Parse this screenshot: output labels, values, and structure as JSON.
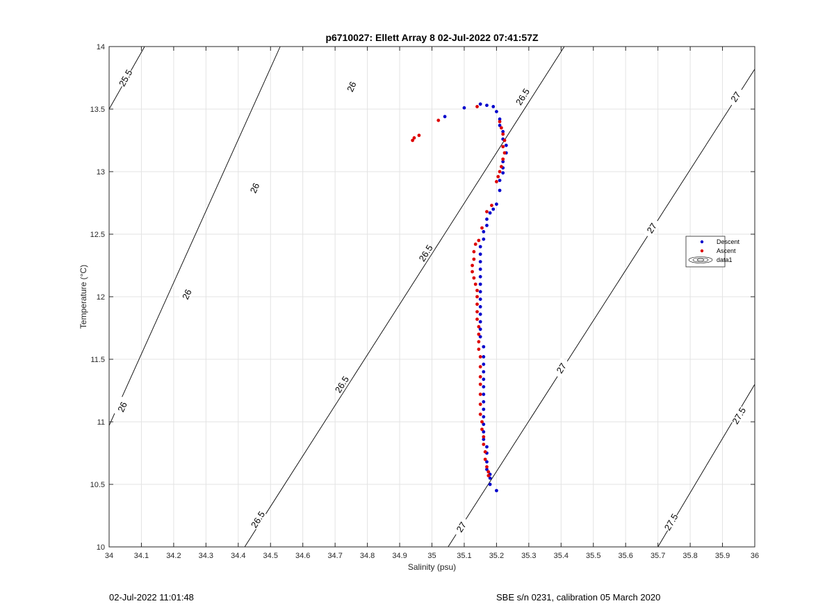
{
  "chart_data": {
    "type": "scatter",
    "title": "p6710027: Ellett Array 8 02-Jul-2022 07:41:57Z",
    "xlabel": "Salinity (psu)",
    "ylabel": "Temperature (°C)",
    "xlim": [
      34,
      36
    ],
    "ylim": [
      10,
      14
    ],
    "xticks": [
      "34",
      "34.1",
      "34.2",
      "34.3",
      "34.4",
      "34.5",
      "34.6",
      "34.7",
      "34.8",
      "34.9",
      "35",
      "35.1",
      "35.2",
      "35.3",
      "35.4",
      "35.5",
      "35.6",
      "35.7",
      "35.8",
      "35.9",
      "36"
    ],
    "yticks": [
      "10",
      "10.5",
      "11",
      "11.5",
      "12",
      "12.5",
      "13",
      "13.5",
      "14"
    ],
    "grid": true,
    "legend_position": "right",
    "legend": [
      {
        "label": "Descent",
        "color": "#0000cc",
        "marker": "dot"
      },
      {
        "label": "Ascent",
        "color": "#dd0000",
        "marker": "dot"
      },
      {
        "label": "data1",
        "color": "#000000",
        "marker": "contour"
      }
    ],
    "series": [
      {
        "name": "Descent",
        "color": "#0000cc",
        "points": [
          [
            35.04,
            13.44
          ],
          [
            35.1,
            13.51
          ],
          [
            35.15,
            13.54
          ],
          [
            35.17,
            13.53
          ],
          [
            35.19,
            13.52
          ],
          [
            35.2,
            13.48
          ],
          [
            35.21,
            13.42
          ],
          [
            35.21,
            13.37
          ],
          [
            35.22,
            13.32
          ],
          [
            35.22,
            13.26
          ],
          [
            35.23,
            13.21
          ],
          [
            35.23,
            13.15
          ],
          [
            35.22,
            13.08
          ],
          [
            35.22,
            13.03
          ],
          [
            35.22,
            12.99
          ],
          [
            35.21,
            12.93
          ],
          [
            35.21,
            12.85
          ],
          [
            35.2,
            12.74
          ],
          [
            35.19,
            12.7
          ],
          [
            35.18,
            12.67
          ],
          [
            35.17,
            12.62
          ],
          [
            35.17,
            12.57
          ],
          [
            35.16,
            12.52
          ],
          [
            35.16,
            12.46
          ],
          [
            35.15,
            12.4
          ],
          [
            35.15,
            12.34
          ],
          [
            35.15,
            12.28
          ],
          [
            35.15,
            12.22
          ],
          [
            35.15,
            12.16
          ],
          [
            35.15,
            12.1
          ],
          [
            35.15,
            12.04
          ],
          [
            35.15,
            11.98
          ],
          [
            35.15,
            11.92
          ],
          [
            35.15,
            11.86
          ],
          [
            35.15,
            11.8
          ],
          [
            35.15,
            11.74
          ],
          [
            35.15,
            11.68
          ],
          [
            35.16,
            11.6
          ],
          [
            35.16,
            11.52
          ],
          [
            35.16,
            11.46
          ],
          [
            35.16,
            11.4
          ],
          [
            35.16,
            11.34
          ],
          [
            35.16,
            11.28
          ],
          [
            35.16,
            11.22
          ],
          [
            35.16,
            11.16
          ],
          [
            35.16,
            11.1
          ],
          [
            35.16,
            11.04
          ],
          [
            35.16,
            10.98
          ],
          [
            35.16,
            10.92
          ],
          [
            35.16,
            10.86
          ],
          [
            35.17,
            10.8
          ],
          [
            35.17,
            10.75
          ],
          [
            35.17,
            10.68
          ],
          [
            35.17,
            10.62
          ],
          [
            35.18,
            10.58
          ],
          [
            35.18,
            10.55
          ],
          [
            35.18,
            10.5
          ],
          [
            35.2,
            10.45
          ]
        ]
      },
      {
        "name": "Ascent",
        "color": "#dd0000",
        "points": [
          [
            34.94,
            13.25
          ],
          [
            34.945,
            13.27
          ],
          [
            34.96,
            13.29
          ],
          [
            35.02,
            13.41
          ],
          [
            35.14,
            13.52
          ],
          [
            35.21,
            13.4
          ],
          [
            35.215,
            13.35
          ],
          [
            35.22,
            13.3
          ],
          [
            35.225,
            13.25
          ],
          [
            35.22,
            13.2
          ],
          [
            35.225,
            13.15
          ],
          [
            35.22,
            13.1
          ],
          [
            35.215,
            13.04
          ],
          [
            35.21,
            13.0
          ],
          [
            35.205,
            12.96
          ],
          [
            35.2,
            12.92
          ],
          [
            35.185,
            12.73
          ],
          [
            35.17,
            12.68
          ],
          [
            35.155,
            12.55
          ],
          [
            35.145,
            12.45
          ],
          [
            35.135,
            12.42
          ],
          [
            35.13,
            12.36
          ],
          [
            35.13,
            12.3
          ],
          [
            35.125,
            12.25
          ],
          [
            35.125,
            12.2
          ],
          [
            35.13,
            12.15
          ],
          [
            35.135,
            12.1
          ],
          [
            35.14,
            12.05
          ],
          [
            35.14,
            12.0
          ],
          [
            35.14,
            11.94
          ],
          [
            35.14,
            11.88
          ],
          [
            35.14,
            11.82
          ],
          [
            35.145,
            11.76
          ],
          [
            35.145,
            11.7
          ],
          [
            35.145,
            11.64
          ],
          [
            35.145,
            11.58
          ],
          [
            35.15,
            11.52
          ],
          [
            35.15,
            11.44
          ],
          [
            35.15,
            11.36
          ],
          [
            35.15,
            11.3
          ],
          [
            35.15,
            11.22
          ],
          [
            35.15,
            11.14
          ],
          [
            35.15,
            11.06
          ],
          [
            35.155,
            11.0
          ],
          [
            35.155,
            10.94
          ],
          [
            35.16,
            10.88
          ],
          [
            35.16,
            10.82
          ],
          [
            35.165,
            10.76
          ],
          [
            35.165,
            10.7
          ],
          [
            35.17,
            10.64
          ],
          [
            35.175,
            10.6
          ],
          [
            35.175,
            10.57
          ]
        ]
      }
    ],
    "isopycnals": [
      {
        "value": "25.5",
        "color": "#000000",
        "labels": 1
      },
      {
        "value": "26",
        "color": "#000000",
        "labels": 4
      },
      {
        "value": "26.5",
        "color": "#000000",
        "labels": 4
      },
      {
        "value": "27",
        "color": "#000000",
        "labels": 4
      },
      {
        "value": "27.5",
        "color": "#000000",
        "labels": 2
      }
    ]
  },
  "footer": {
    "left": "02-Jul-2022 11:01:48",
    "right": "SBE s/n 0231, calibration 05 March 2020"
  }
}
